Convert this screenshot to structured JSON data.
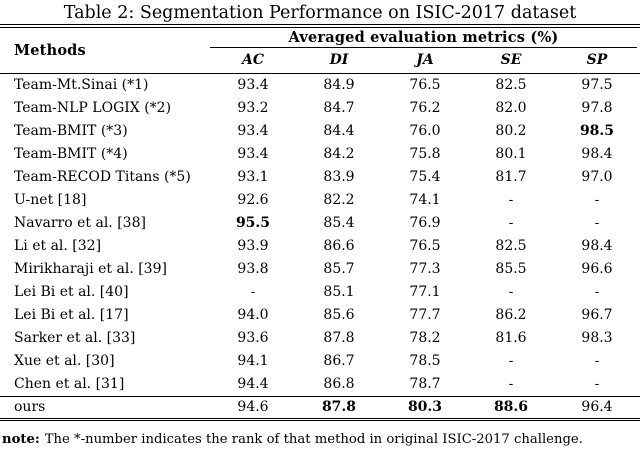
{
  "title": "Table 2: Segmentation Performance on ISIC-2017 dataset",
  "table": {
    "methods_header": "Methods",
    "metrics_group_header": "Averaged evaluation metrics (%)",
    "columns": [
      "AC",
      "DI",
      "JA",
      "SE",
      "SP"
    ],
    "rows": [
      {
        "method": "Team-Mt.Sinai (*1)",
        "values": [
          "93.4",
          "84.9",
          "76.5",
          "82.5",
          "97.5"
        ],
        "bold_cols": []
      },
      {
        "method": "Team-NLP LOGIX (*2)",
        "values": [
          "93.2",
          "84.7",
          "76.2",
          "82.0",
          "97.8"
        ],
        "bold_cols": []
      },
      {
        "method": "Team-BMIT (*3)",
        "values": [
          "93.4",
          "84.4",
          "76.0",
          "80.2",
          "98.5"
        ],
        "bold_cols": [
          4
        ]
      },
      {
        "method": "Team-BMIT (*4)",
        "values": [
          "93.4",
          "84.2",
          "75.8",
          "80.1",
          "98.4"
        ],
        "bold_cols": []
      },
      {
        "method": "Team-RECOD Titans (*5)",
        "values": [
          "93.1",
          "83.9",
          "75.4",
          "81.7",
          "97.0"
        ],
        "bold_cols": []
      },
      {
        "method": "U-net [18]",
        "values": [
          "92.6",
          "82.2",
          "74.1",
          "-",
          "-"
        ],
        "bold_cols": []
      },
      {
        "method": "Navarro et al. [38]",
        "values": [
          "95.5",
          "85.4",
          "76.9",
          "-",
          "-"
        ],
        "bold_cols": [
          0
        ]
      },
      {
        "method": "Li et al. [32]",
        "values": [
          "93.9",
          "86.6",
          "76.5",
          "82.5",
          "98.4"
        ],
        "bold_cols": []
      },
      {
        "method": "Mirikharaji et al. [39]",
        "values": [
          "93.8",
          "85.7",
          "77.3",
          "85.5",
          "96.6"
        ],
        "bold_cols": []
      },
      {
        "method": "Lei Bi et al. [40]",
        "values": [
          "-",
          "85.1",
          "77.1",
          "-",
          "-"
        ],
        "bold_cols": []
      },
      {
        "method": "Lei Bi et al. [17]",
        "values": [
          "94.0",
          "85.6",
          "77.7",
          "86.2",
          "96.7"
        ],
        "bold_cols": []
      },
      {
        "method": "Sarker et al. [33]",
        "values": [
          "93.6",
          "87.8",
          "78.2",
          "81.6",
          "98.3"
        ],
        "bold_cols": []
      },
      {
        "method": "Xue et al. [30]",
        "values": [
          "94.1",
          "86.7",
          "78.5",
          "-",
          "-"
        ],
        "bold_cols": []
      },
      {
        "method": "Chen et al. [31]",
        "values": [
          "94.4",
          "86.8",
          "78.7",
          "-",
          "-"
        ],
        "bold_cols": []
      }
    ],
    "ours_row": {
      "method": "ours",
      "values": [
        "94.6",
        "87.8",
        "80.3",
        "88.6",
        "96.4"
      ],
      "bold_cols": [
        1,
        2,
        3
      ]
    }
  },
  "note": {
    "label": "note:",
    "text": "The *-number indicates the rank of that method in original ISIC-2017 challenge."
  }
}
